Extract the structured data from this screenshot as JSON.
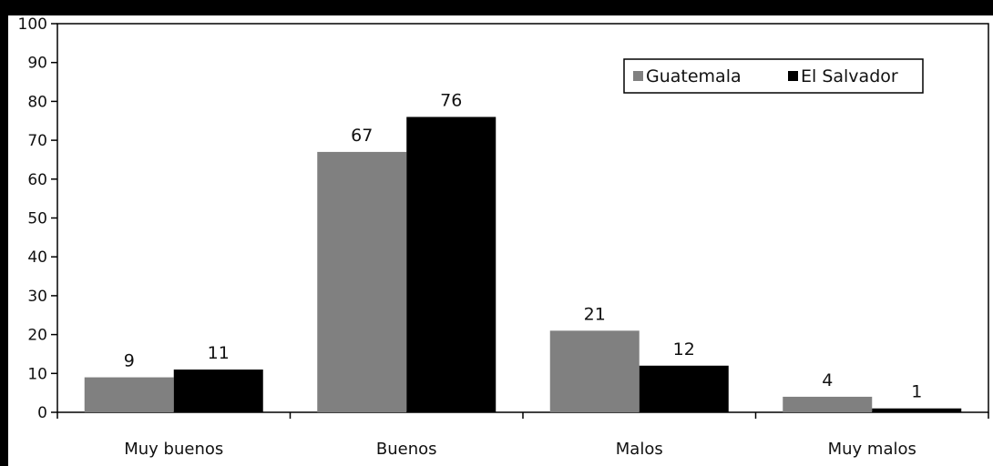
{
  "chart_data": {
    "type": "bar",
    "categories": [
      "Muy buenos",
      "Buenos",
      "Malos",
      "Muy malos"
    ],
    "series": [
      {
        "name": "Guatemala",
        "values": [
          9,
          67,
          21,
          4
        ],
        "color": "#808080"
      },
      {
        "name": "El Salvador",
        "values": [
          11,
          76,
          12,
          1
        ],
        "color": "#000000"
      }
    ],
    "data_labels": [
      [
        "9",
        "67",
        "21",
        "4"
      ],
      [
        "11",
        "76",
        "12",
        "1"
      ]
    ],
    "ylim": [
      0,
      100
    ],
    "yticks": [
      "0",
      "10",
      "20",
      "30",
      "40",
      "50",
      "60",
      "70",
      "80",
      "90",
      "100"
    ],
    "legend_position": "top-right",
    "grid": false
  }
}
